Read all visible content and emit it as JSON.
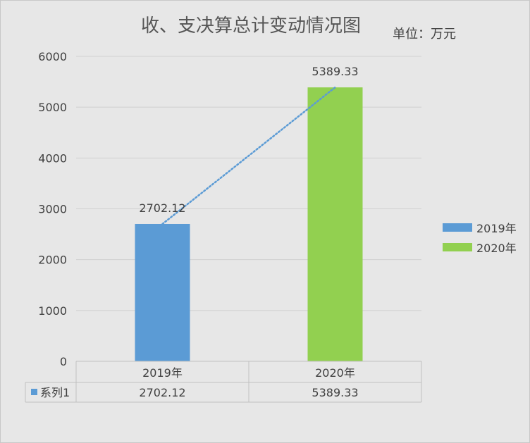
{
  "chart_data": {
    "type": "bar",
    "title": "收、支决算总计变动情况图",
    "unit_label": "单位：万元",
    "categories": [
      "2019年",
      "2020年"
    ],
    "values": [
      2702.12,
      5389.33
    ],
    "value_labels": [
      "2702.12",
      "5389.33"
    ],
    "bar_colors": [
      "#5b9bd5",
      "#92d050"
    ],
    "trendline_color": "#5b9bd5",
    "ylim": [
      0,
      6000
    ],
    "yticks": [
      "0",
      "1000",
      "2000",
      "3000",
      "4000",
      "5000",
      "6000"
    ],
    "grid": true,
    "legend": {
      "position": "right",
      "entries": [
        "2019年",
        "2020年"
      ]
    },
    "data_table": {
      "series_label": "系列1",
      "header": [
        "2019年",
        "2020年"
      ],
      "row": [
        "2702.12",
        "5389.33"
      ]
    }
  }
}
